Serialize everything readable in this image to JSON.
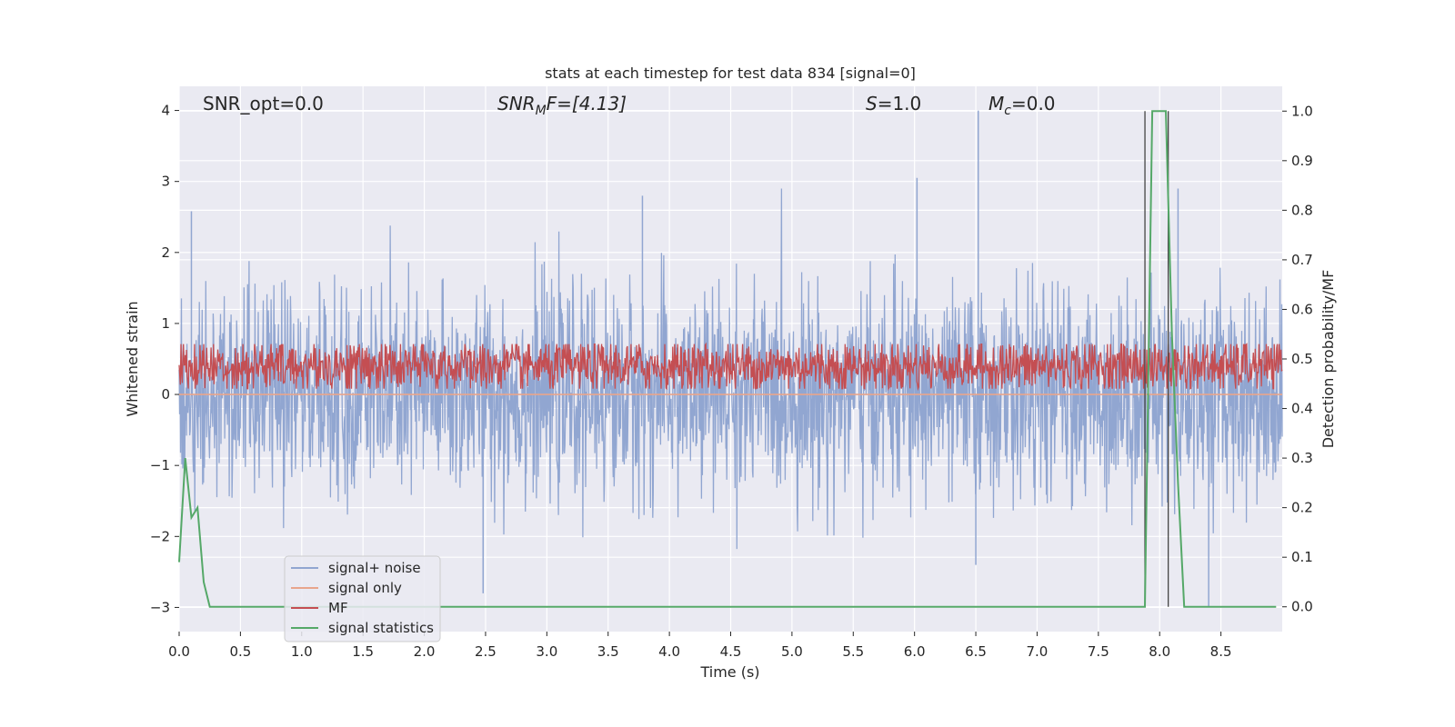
{
  "chart_data": {
    "type": "line",
    "title": "stats at each timestep for test data 834 [signal=0]",
    "xlabel": "Time (s)",
    "ylabel": "Whitened strain",
    "y2label": "Detection probability/MF",
    "xlim": [
      0.0,
      9.0
    ],
    "ylim": [
      -3.34,
      4.34
    ],
    "y2lim": [
      -0.05,
      1.05
    ],
    "xticks": [
      "0.0",
      "0.5",
      "1.0",
      "1.5",
      "2.0",
      "2.5",
      "3.0",
      "3.5",
      "4.0",
      "4.5",
      "5.0",
      "5.5",
      "6.0",
      "6.5",
      "7.0",
      "7.5",
      "8.0",
      "8.5"
    ],
    "yticks": [
      "4",
      "3",
      "2",
      "1",
      "0",
      "−1",
      "−2",
      "−3"
    ],
    "y2ticks": [
      "1.0",
      "0.9",
      "0.8",
      "0.7",
      "0.6",
      "0.5",
      "0.4",
      "0.3",
      "0.2",
      "0.1",
      "0.0"
    ],
    "grid": true,
    "legend_position": "lower-left",
    "annotations": {
      "snr_opt": "SNR_opt=0.0",
      "snr_mf_main": "SNR",
      "snr_mf_sub": "M",
      "snr_mf_rest": "F=[4.13]",
      "s_main": "S",
      "s_rest": "=1.0",
      "mc_main": "M",
      "mc_sub": "c",
      "mc_rest": "=0.0"
    },
    "series": [
      {
        "name": "signal+ noise",
        "color": "#91a6d1",
        "description_stats": {
          "mean": 0.0,
          "std": 0.72,
          "max": 4.0,
          "min": -3.0
        }
      },
      {
        "name": "signal only",
        "color": "#e8a58c",
        "constant": 0.0
      },
      {
        "name": "MF",
        "color": "#c44e52",
        "axis": "y2",
        "band": [
          0.44,
          0.53
        ]
      },
      {
        "name": "signal statistics",
        "color": "#55a868",
        "axis": "y2",
        "x": [
          0.0,
          0.05,
          0.1,
          0.15,
          0.2,
          0.25,
          0.3,
          7.85,
          7.88,
          7.94,
          8.05,
          8.1,
          8.15,
          8.2,
          8.95
        ],
        "y": [
          0.09,
          0.3,
          0.18,
          0.2,
          0.05,
          0.0,
          0.0,
          0.0,
          0.0,
          1.0,
          1.0,
          0.55,
          0.25,
          0.0,
          0.0
        ]
      }
    ],
    "vlines": [
      {
        "x": 7.88,
        "ymin": 0.0,
        "ymax": 1.0
      },
      {
        "x": 8.07,
        "ymin": 0.0,
        "ymax": 1.0
      }
    ]
  }
}
